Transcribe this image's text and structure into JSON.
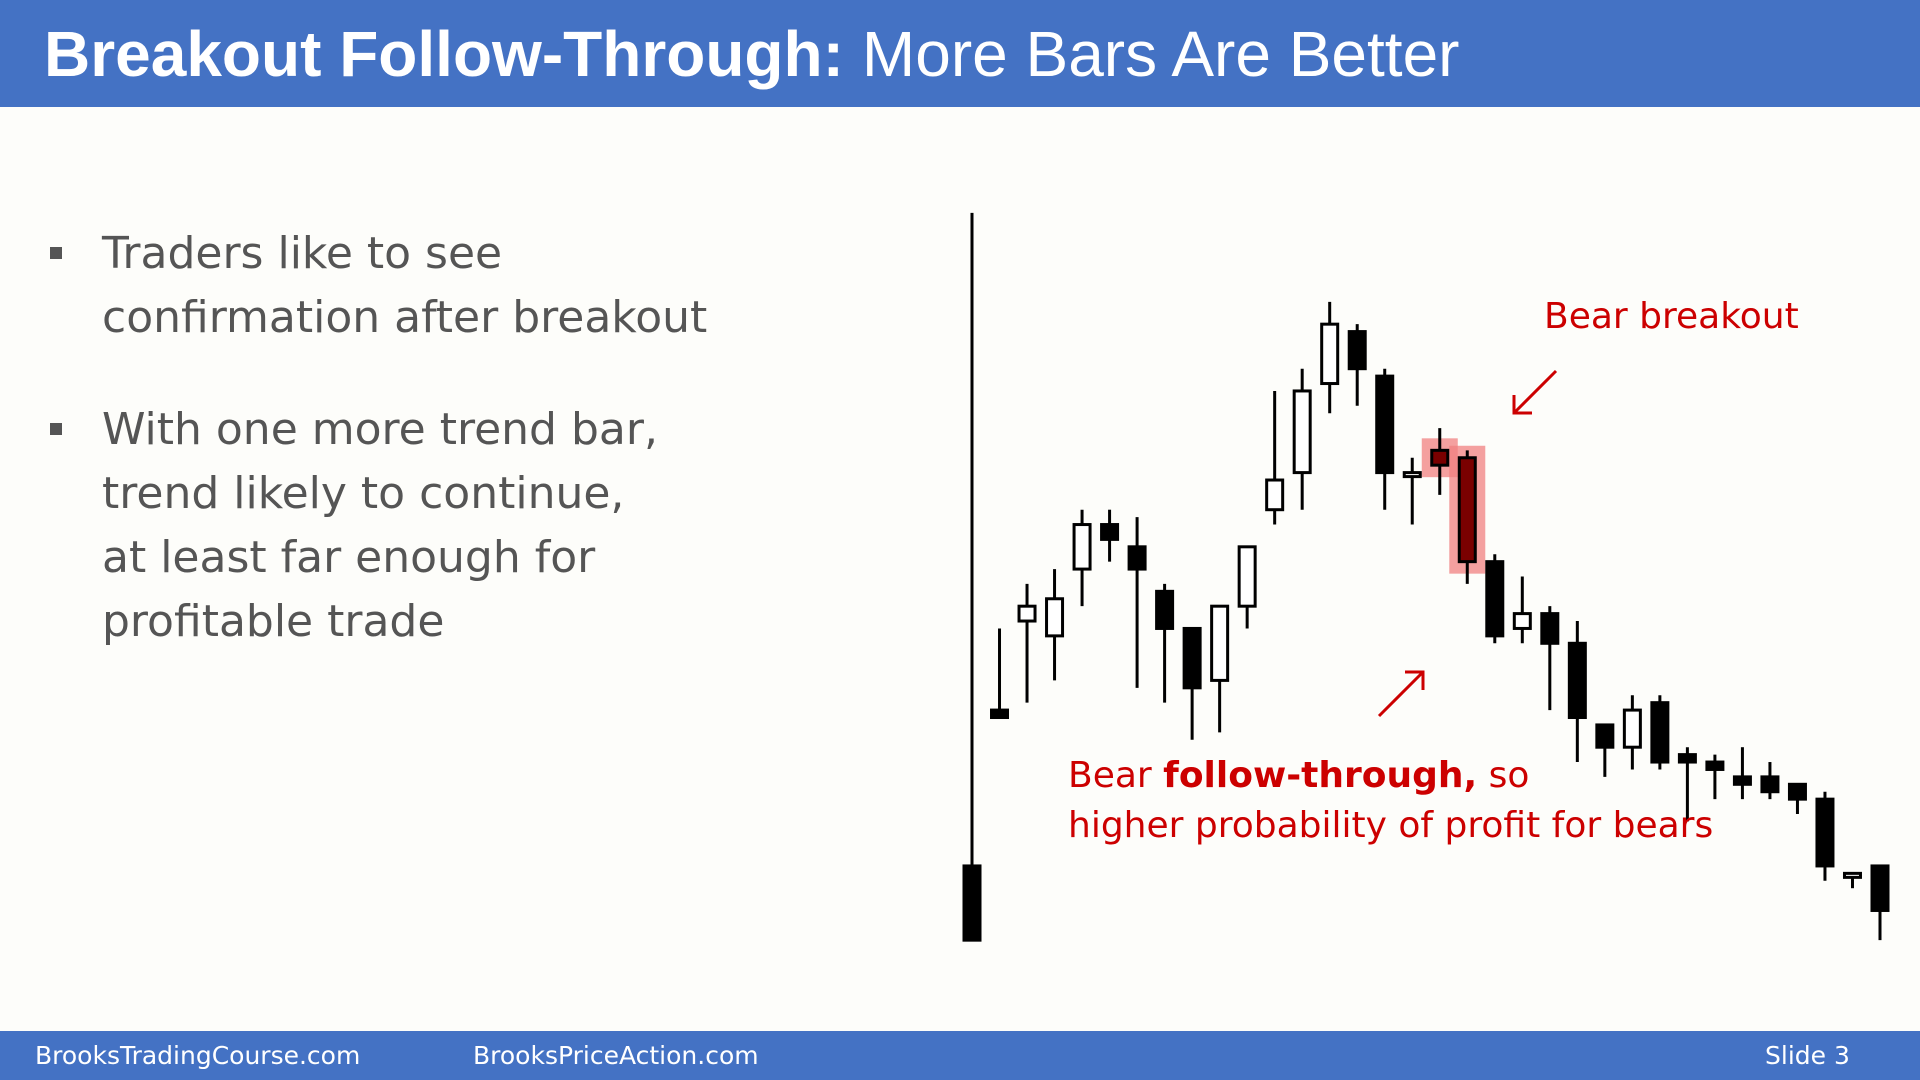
{
  "slide": {
    "title_bold": "Breakout Follow-Through:",
    "title_rest": "More Bars Are Better",
    "bullets": [
      [
        "Traders like to see",
        "confirmation after breakout"
      ],
      [
        "With one more trend bar,",
        "trend likely to continue,",
        "at least far enough for",
        "profitable trade"
      ]
    ],
    "annotations": {
      "breakout": "Bear breakout",
      "follow_through_prefix": "Bear ",
      "follow_through_bold": "follow-through,",
      "follow_through_suffix": " so",
      "follow_through_line2": "higher probability of profit for bears"
    },
    "footer": {
      "left": "BrooksTradingCourse.com",
      "middle": "BrooksPriceAction.com",
      "slide_label": "Slide  3"
    }
  },
  "colors": {
    "title_bar": "#4472c4",
    "annotation": "#cc0000",
    "highlight": "#f08080",
    "bear_candle": "#000000",
    "bull_candle": "#ffffff"
  },
  "chart_data": {
    "type": "candlestick",
    "highlighted_bars": [
      17,
      18
    ],
    "bars": [
      {
        "o": 12,
        "h": 10,
        "l": 100,
        "c": 2
      },
      {
        "o": 33,
        "h": 44,
        "l": 32,
        "c": 32
      },
      {
        "o": 45,
        "h": 50,
        "l": 34,
        "c": 47
      },
      {
        "o": 43,
        "h": 52,
        "l": 37,
        "c": 48
      },
      {
        "o": 52,
        "h": 60,
        "l": 47,
        "c": 58
      },
      {
        "o": 58,
        "h": 60,
        "l": 53,
        "c": 56
      },
      {
        "o": 55,
        "h": 59,
        "l": 36,
        "c": 52
      },
      {
        "o": 49,
        "h": 50,
        "l": 34,
        "c": 44
      },
      {
        "o": 44,
        "h": 41,
        "l": 29,
        "c": 36
      },
      {
        "o": 37,
        "h": 39,
        "l": 30,
        "c": 47
      },
      {
        "o": 47,
        "h": 50,
        "l": 44,
        "c": 55
      },
      {
        "o": 60,
        "h": 76,
        "l": 58,
        "c": 64
      },
      {
        "o": 65,
        "h": 79,
        "l": 60,
        "c": 76
      },
      {
        "o": 77,
        "h": 88,
        "l": 73,
        "c": 85
      },
      {
        "o": 84,
        "h": 85,
        "l": 74,
        "c": 79
      },
      {
        "o": 78,
        "h": 79,
        "l": 60,
        "c": 65
      },
      {
        "o": 65,
        "h": 67,
        "l": 58,
        "c": 65
      },
      {
        "o": 66,
        "h": 71,
        "l": 62,
        "c": 68
      },
      {
        "o": 67,
        "h": 68,
        "l": 50,
        "c": 53
      },
      {
        "o": 53,
        "h": 54,
        "l": 42,
        "c": 43
      },
      {
        "o": 44,
        "h": 51,
        "l": 42,
        "c": 46
      },
      {
        "o": 46,
        "h": 47,
        "l": 33,
        "c": 42
      },
      {
        "o": 42,
        "h": 45,
        "l": 26,
        "c": 32
      },
      {
        "o": 31,
        "h": 31,
        "l": 24,
        "c": 28
      },
      {
        "o": 28,
        "h": 35,
        "l": 25,
        "c": 33
      },
      {
        "o": 34,
        "h": 35,
        "l": 25,
        "c": 26
      },
      {
        "o": 27,
        "h": 28,
        "l": 18,
        "c": 26
      },
      {
        "o": 26,
        "h": 27,
        "l": 21,
        "c": 25
      },
      {
        "o": 24,
        "h": 28,
        "l": 21,
        "c": 23
      },
      {
        "o": 24,
        "h": 26,
        "l": 21,
        "c": 22
      },
      {
        "o": 23,
        "h": 23,
        "l": 19,
        "c": 21
      },
      {
        "o": 21,
        "h": 22,
        "l": 10,
        "c": 12
      },
      {
        "o": 11,
        "h": 11,
        "l": 9,
        "c": 11
      },
      {
        "o": 12,
        "h": 12,
        "l": 2,
        "c": 6
      }
    ]
  }
}
